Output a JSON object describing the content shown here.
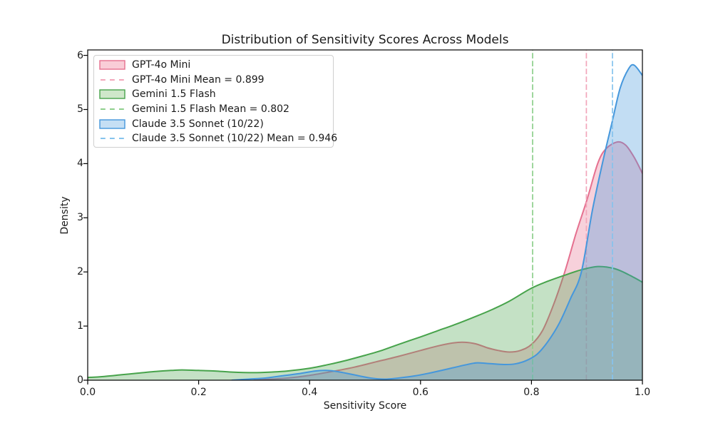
{
  "title": "Distribution of Sensitivity Scores Across Models",
  "axes": {
    "xlabel": "Sensitivity Score",
    "ylabel": "Density",
    "x_ticks": [
      "0.0",
      "0.2",
      "0.4",
      "0.6",
      "0.8",
      "1.0"
    ],
    "x_tick_values": [
      0.0,
      0.2,
      0.4,
      0.6,
      0.8,
      1.0
    ],
    "y_ticks": [
      "0",
      "1",
      "2",
      "3",
      "4",
      "5",
      "6"
    ],
    "y_tick_values": [
      0,
      1,
      2,
      3,
      4,
      5,
      6
    ],
    "spine_color": "#000000"
  },
  "legend": {
    "position": "upper-left",
    "border_color": "#cfcfcf",
    "items": [
      {
        "id": "gpt-4o-mini",
        "type": "patch",
        "label": "GPT-4o Mini",
        "fill": "#f9cdd7",
        "edge": "#e5708f"
      },
      {
        "id": "gpt-4o-mini-mean",
        "type": "dash",
        "label": "GPT-4o Mini Mean = 0.899",
        "color": "#f2a6ba"
      },
      {
        "id": "gemini-1-5-flash",
        "type": "patch",
        "label": "Gemini 1.5 Flash",
        "fill": "#cfe7ca",
        "edge": "#47a34b"
      },
      {
        "id": "gemini-1-5-flash-mean",
        "type": "dash",
        "label": "Gemini 1.5 Flash Mean = 0.802",
        "color": "#8ecf8c"
      },
      {
        "id": "claude-3-5-sonnet",
        "type": "patch",
        "label": "Claude 3.5 Sonnet (10/22)",
        "fill": "#c5dff4",
        "edge": "#4597dc"
      },
      {
        "id": "claude-3-5-sonnet-mean",
        "type": "dash",
        "label": "Claude 3.5 Sonnet (10/22) Mean = 0.946",
        "color": "#85c3ed"
      }
    ]
  },
  "chart_data": {
    "type": "area",
    "kind": "kde-density",
    "title": "Distribution of Sensitivity Scores Across Models",
    "xlabel": "Sensitivity Score",
    "ylabel": "Density",
    "xlim": [
      0,
      1
    ],
    "ylim": [
      0,
      6.1
    ],
    "grid": false,
    "legend_position": "upper-left",
    "series": [
      {
        "name": "GPT-4o Mini",
        "id": "gpt-4o-mini",
        "mean": 0.899,
        "line_color": "#e5708f",
        "fill_color": "rgba(229,112,143,0.32)",
        "mean_color": "#f2a6ba",
        "points": [
          [
            0.3,
            0.0
          ],
          [
            0.33,
            0.02
          ],
          [
            0.36,
            0.04
          ],
          [
            0.4,
            0.09
          ],
          [
            0.44,
            0.16
          ],
          [
            0.48,
            0.24
          ],
          [
            0.52,
            0.34
          ],
          [
            0.56,
            0.44
          ],
          [
            0.6,
            0.55
          ],
          [
            0.63,
            0.63
          ],
          [
            0.66,
            0.69
          ],
          [
            0.68,
            0.7
          ],
          [
            0.7,
            0.67
          ],
          [
            0.72,
            0.6
          ],
          [
            0.74,
            0.55
          ],
          [
            0.76,
            0.52
          ],
          [
            0.78,
            0.55
          ],
          [
            0.8,
            0.66
          ],
          [
            0.82,
            0.92
          ],
          [
            0.84,
            1.4
          ],
          [
            0.86,
            2.0
          ],
          [
            0.88,
            2.7
          ],
          [
            0.9,
            3.33
          ],
          [
            0.92,
            4.02
          ],
          [
            0.935,
            4.28
          ],
          [
            0.955,
            4.4
          ],
          [
            0.97,
            4.34
          ],
          [
            0.985,
            4.12
          ],
          [
            1.0,
            3.82
          ]
        ]
      },
      {
        "name": "Gemini 1.5 Flash",
        "id": "gemini-1-5-flash",
        "mean": 0.802,
        "line_color": "#47a34b",
        "fill_color": "rgba(71,163,75,0.32)",
        "mean_color": "#8ecf8c",
        "points": [
          [
            0.0,
            0.05
          ],
          [
            0.03,
            0.07
          ],
          [
            0.06,
            0.1
          ],
          [
            0.09,
            0.13
          ],
          [
            0.12,
            0.16
          ],
          [
            0.15,
            0.18
          ],
          [
            0.17,
            0.19
          ],
          [
            0.2,
            0.18
          ],
          [
            0.23,
            0.17
          ],
          [
            0.26,
            0.15
          ],
          [
            0.3,
            0.14
          ],
          [
            0.33,
            0.15
          ],
          [
            0.36,
            0.17
          ],
          [
            0.4,
            0.22
          ],
          [
            0.43,
            0.28
          ],
          [
            0.46,
            0.35
          ],
          [
            0.5,
            0.46
          ],
          [
            0.53,
            0.55
          ],
          [
            0.56,
            0.66
          ],
          [
            0.6,
            0.8
          ],
          [
            0.63,
            0.91
          ],
          [
            0.66,
            1.02
          ],
          [
            0.7,
            1.18
          ],
          [
            0.73,
            1.31
          ],
          [
            0.76,
            1.46
          ],
          [
            0.8,
            1.7
          ],
          [
            0.83,
            1.83
          ],
          [
            0.86,
            1.94
          ],
          [
            0.89,
            2.04
          ],
          [
            0.92,
            2.1
          ],
          [
            0.95,
            2.06
          ],
          [
            0.975,
            1.95
          ],
          [
            1.0,
            1.81
          ]
        ]
      },
      {
        "name": "Claude 3.5 Sonnet (10/22)",
        "id": "claude-3-5-sonnet",
        "mean": 0.946,
        "line_color": "#4597dc",
        "fill_color": "rgba(69,151,220,0.33)",
        "mean_color": "#85c3ed",
        "points": [
          [
            0.26,
            0.0
          ],
          [
            0.29,
            0.02
          ],
          [
            0.32,
            0.04
          ],
          [
            0.35,
            0.08
          ],
          [
            0.38,
            0.12
          ],
          [
            0.41,
            0.17
          ],
          [
            0.43,
            0.18
          ],
          [
            0.45,
            0.16
          ],
          [
            0.48,
            0.1
          ],
          [
            0.51,
            0.04
          ],
          [
            0.535,
            0.02
          ],
          [
            0.56,
            0.04
          ],
          [
            0.59,
            0.08
          ],
          [
            0.62,
            0.14
          ],
          [
            0.65,
            0.21
          ],
          [
            0.68,
            0.28
          ],
          [
            0.7,
            0.32
          ],
          [
            0.72,
            0.31
          ],
          [
            0.75,
            0.29
          ],
          [
            0.77,
            0.3
          ],
          [
            0.79,
            0.36
          ],
          [
            0.81,
            0.48
          ],
          [
            0.83,
            0.72
          ],
          [
            0.85,
            1.05
          ],
          [
            0.87,
            1.5
          ],
          [
            0.89,
            2.0
          ],
          [
            0.91,
            3.15
          ],
          [
            0.93,
            4.1
          ],
          [
            0.945,
            4.75
          ],
          [
            0.96,
            5.4
          ],
          [
            0.975,
            5.75
          ],
          [
            0.985,
            5.82
          ],
          [
            1.0,
            5.63
          ]
        ]
      }
    ]
  }
}
